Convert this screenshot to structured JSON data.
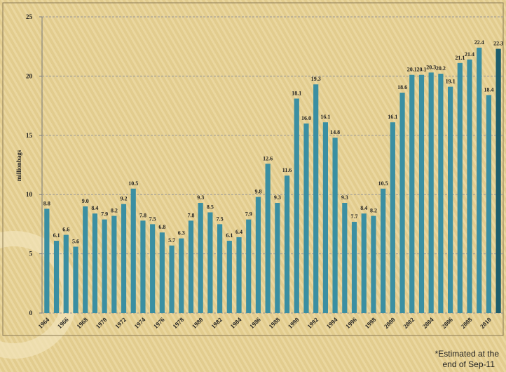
{
  "chart_data": {
    "type": "bar",
    "y_label": "millionbags",
    "categories": [
      "1964",
      null,
      "1966",
      null,
      "1968",
      null,
      "1970",
      null,
      "1972",
      null,
      "1974",
      null,
      "1976",
      null,
      "1978",
      null,
      "1980",
      null,
      "1982",
      null,
      "1984",
      null,
      "1986",
      null,
      "1988",
      null,
      "1990",
      null,
      "1992",
      null,
      "1994",
      null,
      "1996",
      null,
      "1998",
      null,
      "2000",
      null,
      "2002",
      null,
      "2004",
      null,
      "2006",
      null,
      "2008",
      null,
      "2010",
      null
    ],
    "values": [
      8.8,
      6.1,
      6.6,
      5.6,
      9.0,
      8.4,
      7.9,
      8.2,
      9.2,
      10.5,
      7.8,
      7.5,
      6.8,
      5.7,
      6.3,
      7.8,
      9.3,
      8.5,
      7.5,
      6.1,
      6.4,
      7.9,
      9.8,
      12.6,
      9.3,
      11.6,
      18.1,
      16.0,
      19.3,
      16.1,
      14.8,
      9.3,
      7.7,
      8.4,
      8.2,
      10.5,
      16.1,
      18.6,
      20.1,
      20.1,
      20.3,
      20.2,
      19.1,
      21.1,
      21.4,
      22.4,
      18.4,
      22.3
    ],
    "value_labels": [
      "8.8",
      "6.1",
      "6.6",
      "5.6",
      "9.0",
      "8.4",
      "7.9",
      "8.2",
      "9.2",
      "10.5",
      "7.8",
      "7.5",
      "6.8",
      "5.7",
      "6.3",
      "7.8",
      "9.3",
      "8.5",
      "7.5",
      "6.1",
      "6.4",
      "7.9",
      "9.8",
      "12.6",
      "9.3",
      "11.6",
      "18.1",
      "16.0",
      "19.3",
      "16.1",
      "14.8",
      "9.3",
      "7.7",
      "8.4",
      "8.2",
      "10.5",
      "16.1",
      "18.6",
      "20.1",
      "20.1",
      "20.3",
      "20.2",
      "19.1",
      "21.1",
      "21.4",
      "22.4",
      "18.4",
      "22.3"
    ],
    "colors": [
      "#3a8fa2",
      "#3a8fa2",
      "#3a8fa2",
      "#3a8fa2",
      "#3a8fa2",
      "#3a8fa2",
      "#3a8fa2",
      "#3a8fa2",
      "#3a8fa2",
      "#3a8fa2",
      "#3a8fa2",
      "#3a8fa2",
      "#3a8fa2",
      "#3a8fa2",
      "#3a8fa2",
      "#3a8fa2",
      "#3a8fa2",
      "#3a8fa2",
      "#3a8fa2",
      "#3a8fa2",
      "#3a8fa2",
      "#3a8fa2",
      "#3a8fa2",
      "#3a8fa2",
      "#3a8fa2",
      "#3a8fa2",
      "#3a8fa2",
      "#3a8fa2",
      "#3a8fa2",
      "#3a8fa2",
      "#3a8fa2",
      "#3a8fa2",
      "#3a8fa2",
      "#3a8fa2",
      "#3a8fa2",
      "#3a8fa2",
      "#3a8fa2",
      "#3a8fa2",
      "#3a8fa2",
      "#3a8fa2",
      "#3a8fa2",
      "#3a8fa2",
      "#3a8fa2",
      "#3a8fa2",
      "#3a8fa2",
      "#3a8fa2",
      "#3a8fa2",
      "#1d5d6c"
    ],
    "ylim": [
      0,
      25
    ],
    "yticks": [
      0,
      5,
      10,
      15,
      20,
      25
    ],
    "grid": true,
    "annotations": [
      "*Estimated at the",
      "end of Sep-11"
    ]
  }
}
